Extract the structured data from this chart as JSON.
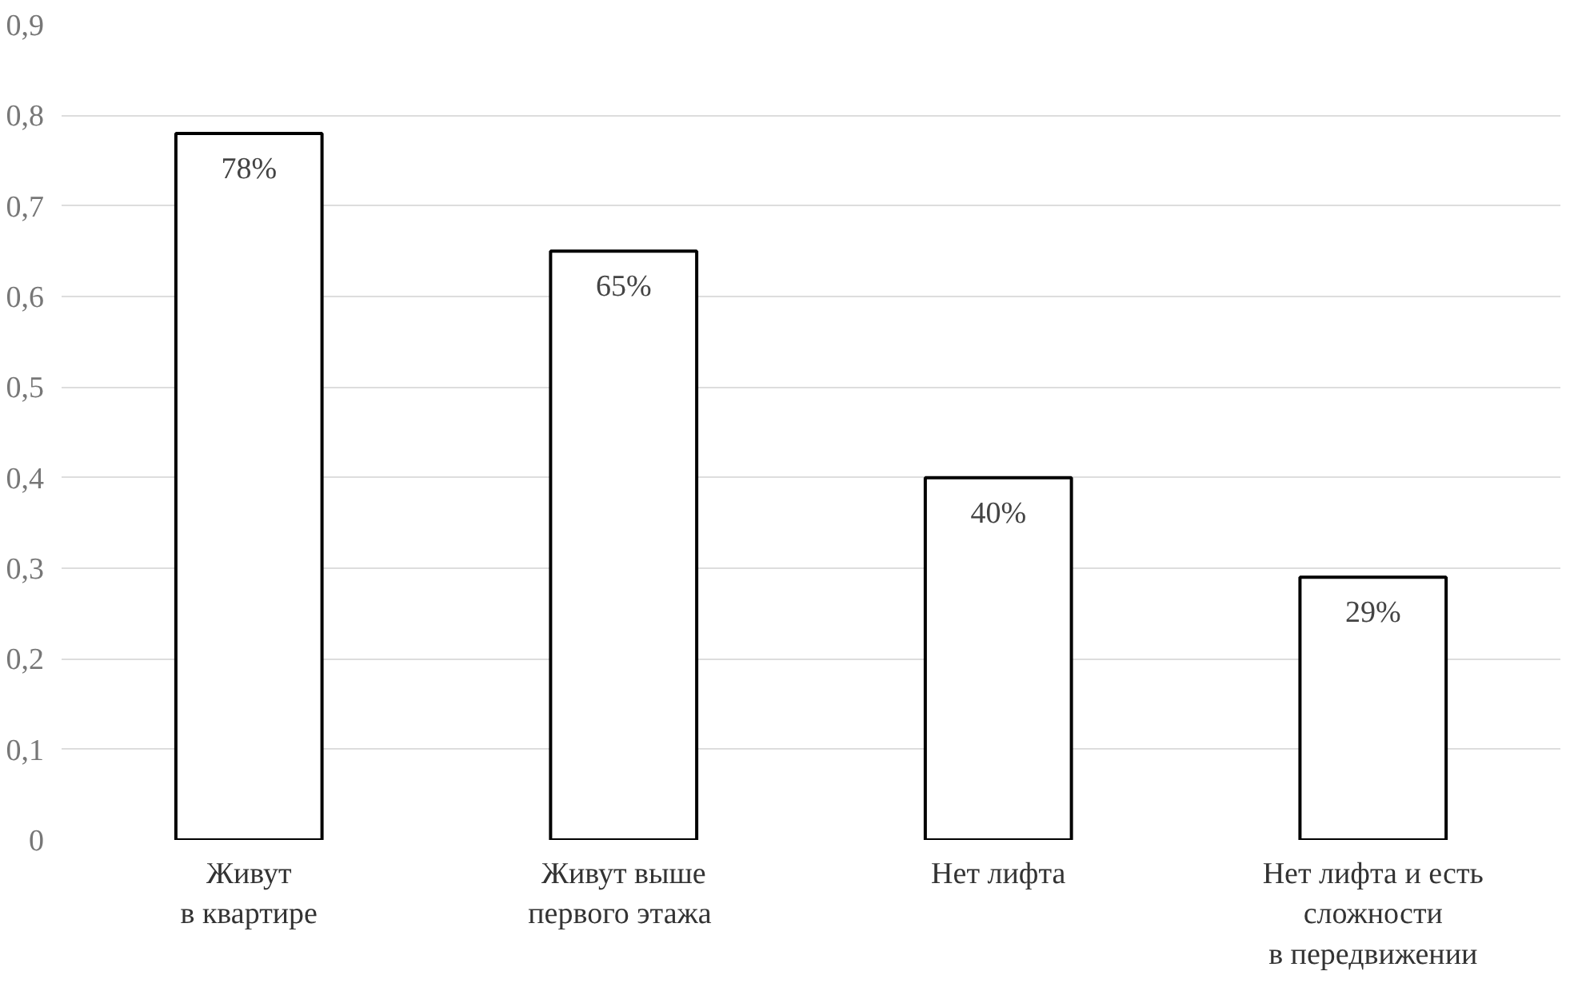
{
  "chart_data": {
    "type": "bar",
    "categories": [
      "Живут\nв квартире",
      "Живут выше\nпервого  этажа",
      "Нет лифта",
      "Нет лифта и есть\nсложности\nв передвижении"
    ],
    "values": [
      0.78,
      0.65,
      0.4,
      0.29
    ],
    "value_labels": [
      "78%",
      "65%",
      "40%",
      "29%"
    ],
    "color": "#ffffff",
    "ylim": [
      0,
      0.9
    ],
    "yticks": [
      {
        "value": 0,
        "label": "0"
      },
      {
        "value": 0.1,
        "label": "0,1"
      },
      {
        "value": 0.2,
        "label": "0,2"
      },
      {
        "value": 0.3,
        "label": "0,3"
      },
      {
        "value": 0.4,
        "label": "0,4"
      },
      {
        "value": 0.5,
        "label": "0,5"
      },
      {
        "value": 0.6,
        "label": "0,6"
      },
      {
        "value": 0.7,
        "label": "0,7"
      },
      {
        "value": 0.8,
        "label": "0,8"
      },
      {
        "value": 0.9,
        "label": "0,9"
      }
    ],
    "grid": "y"
  }
}
